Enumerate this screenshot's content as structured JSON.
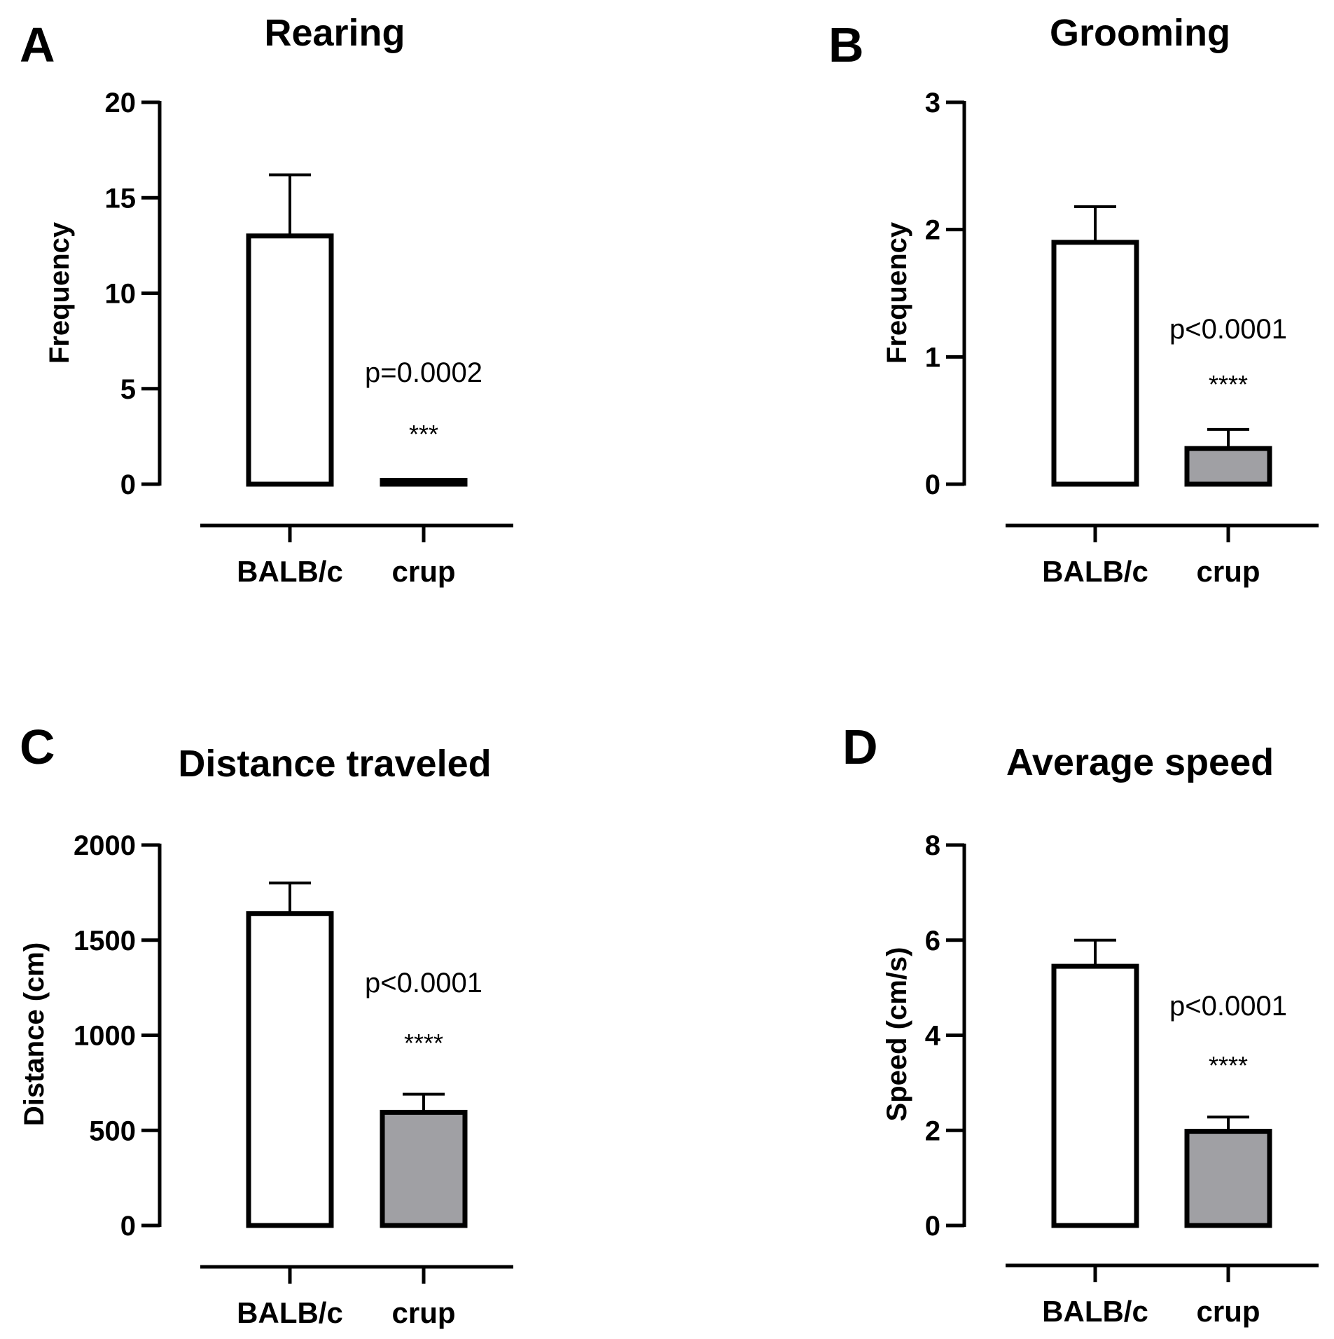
{
  "chart_data": [
    {
      "panel": "A",
      "type": "bar",
      "title": "Rearing",
      "ylabel": "Frequency",
      "xlabel": "",
      "ylim": [
        0,
        20
      ],
      "yticks": [
        0,
        5,
        10,
        15,
        20
      ],
      "ytick_labels": [
        "0",
        "5",
        "10",
        "15",
        "20"
      ],
      "categories": [
        "BALB/c",
        "crup"
      ],
      "values": [
        13.0,
        0.2
      ],
      "errors": [
        3.2,
        0
      ],
      "fills": [
        "#ffffff",
        "#a0a0a4"
      ],
      "annotation": {
        "p_text": "p=0.0002",
        "stars": "***"
      }
    },
    {
      "panel": "B",
      "type": "bar",
      "title": "Grooming",
      "ylabel": "Frequency",
      "xlabel": "",
      "ylim": [
        0,
        3
      ],
      "yticks": [
        0,
        1,
        2,
        3
      ],
      "ytick_labels": [
        "0",
        "1",
        "2",
        "3"
      ],
      "categories": [
        "BALB/c",
        "crup"
      ],
      "values": [
        1.9,
        0.28
      ],
      "errors": [
        0.28,
        0.15
      ],
      "fills": [
        "#ffffff",
        "#a0a0a4"
      ],
      "annotation": {
        "p_text": "p<0.0001",
        "stars": "****"
      }
    },
    {
      "panel": "C",
      "type": "bar",
      "title": "Distance traveled",
      "ylabel": "Distance (cm)",
      "xlabel": "",
      "ylim": [
        0,
        2000
      ],
      "yticks": [
        0,
        500,
        1000,
        1500,
        2000
      ],
      "ytick_labels": [
        "0",
        "500",
        "1000",
        "1500",
        "2000"
      ],
      "categories": [
        "BALB/c",
        "crup"
      ],
      "values": [
        1640,
        595
      ],
      "errors": [
        160,
        95
      ],
      "fills": [
        "#ffffff",
        "#a0a0a4"
      ],
      "annotation": {
        "p_text": "p<0.0001",
        "stars": "****"
      }
    },
    {
      "panel": "D",
      "type": "bar",
      "title": "Average speed",
      "ylabel": "Speed (cm/s)",
      "xlabel": "",
      "ylim": [
        0,
        8
      ],
      "yticks": [
        0,
        2,
        4,
        6,
        8
      ],
      "ytick_labels": [
        "0",
        "2",
        "4",
        "6",
        "8"
      ],
      "categories": [
        "BALB/c",
        "crup"
      ],
      "values": [
        5.45,
        1.98
      ],
      "errors": [
        0.55,
        0.3
      ],
      "fills": [
        "#ffffff",
        "#a0a0a4"
      ],
      "annotation": {
        "p_text": "p<0.0001",
        "stars": "****"
      }
    }
  ]
}
